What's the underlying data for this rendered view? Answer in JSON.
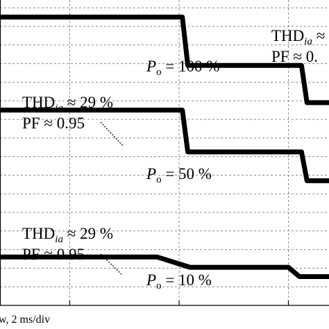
{
  "chart_data": {
    "type": "line",
    "title": "",
    "xlabel": "w, 2 ms/div",
    "ylabel": "",
    "grid": true,
    "traces": [
      {
        "name": "",
        "x": [
          0.0,
          2.03,
          2.08,
          3.12,
          3.17,
          4.5
        ],
        "y": [
          15.5,
          15.5,
          12.9,
          12.9,
          10.9,
          10.9
        ]
      },
      {
        "name": "",
        "x": [
          0.0,
          2.03,
          2.08,
          3.12,
          3.17,
          4.5
        ],
        "y": [
          10.5,
          10.5,
          8.25,
          8.25,
          6.7,
          6.7
        ]
      },
      {
        "name": "",
        "x": [
          0.0,
          1.8,
          2.1,
          3.0,
          3.1,
          4.5
        ],
        "y": [
          2.6,
          2.6,
          2.05,
          2.05,
          1.55,
          1.55
        ]
      }
    ]
  },
  "annotations": {
    "top_thd_prefix": "THD",
    "top_thd_sub": "ia",
    "top_thd_suffix": " ≈",
    "top_pf": "PF ≈ 0.",
    "p100_p": "P",
    "p100_sub": "o",
    "p100_value": " = 100 %",
    "mid_thd_prefix": "THD",
    "mid_thd_sub": "ia",
    "mid_thd_suffix": " ≈ 29 %",
    "mid_pf": "PF ≈ 0.95",
    "p50_p": "P",
    "p50_sub": "o",
    "p50_value": " = 50 %",
    "low_thd_prefix": "THD",
    "low_thd_sub": "ia",
    "low_thd_suffix": " ≈ 29 %",
    "low_pf": "PF ≈ 0.95",
    "p10_p": "P",
    "p10_sub": "o",
    "p10_value": " = 10 %"
  }
}
